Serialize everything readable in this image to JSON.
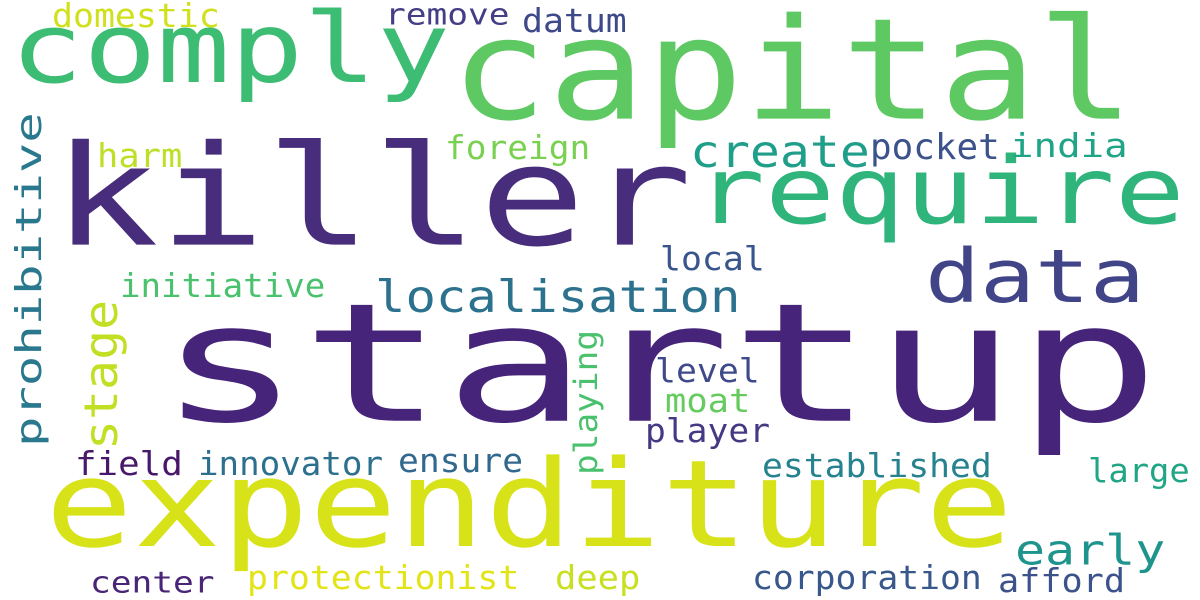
{
  "word_cloud": {
    "background": "#ffffff",
    "words": [
      {
        "text": "startup",
        "color": "#46247a"
      },
      {
        "text": "killer",
        "color": "#472d7b"
      },
      {
        "text": "capital",
        "color": "#5ec962"
      },
      {
        "text": "expenditure",
        "color": "#d8e219"
      },
      {
        "text": "comply",
        "color": "#3dbc74"
      },
      {
        "text": "require",
        "color": "#2fb47c"
      },
      {
        "text": "data",
        "color": "#414487"
      },
      {
        "text": "localisation",
        "color": "#2c728e"
      },
      {
        "text": "prohibitive",
        "color": "#2a788e"
      },
      {
        "text": "stage",
        "color": "#c2df23"
      },
      {
        "text": "create",
        "color": "#1f9e89"
      },
      {
        "text": "early",
        "color": "#1f948c"
      },
      {
        "text": "playing",
        "color": "#4ac16d"
      },
      {
        "text": "pocket",
        "color": "#3b528b"
      },
      {
        "text": "india",
        "color": "#20a486"
      },
      {
        "text": "foreign",
        "color": "#7ad151"
      },
      {
        "text": "harm",
        "color": "#bddf26"
      },
      {
        "text": "remove",
        "color": "#433e85"
      },
      {
        "text": "datum",
        "color": "#3e4989"
      },
      {
        "text": "domestic",
        "color": "#d0e11c"
      },
      {
        "text": "initiative",
        "color": "#4ac16d"
      },
      {
        "text": "local",
        "color": "#39568c"
      },
      {
        "text": "level",
        "color": "#3e4a89"
      },
      {
        "text": "moat",
        "color": "#65cb5e"
      },
      {
        "text": "player",
        "color": "#443983"
      },
      {
        "text": "field",
        "color": "#48186a"
      },
      {
        "text": "innovator",
        "color": "#2d708e"
      },
      {
        "text": "ensure",
        "color": "#31688e"
      },
      {
        "text": "established",
        "color": "#26828e"
      },
      {
        "text": "large",
        "color": "#21a685"
      },
      {
        "text": "center",
        "color": "#482576"
      },
      {
        "text": "protectionist",
        "color": "#e2e418"
      },
      {
        "text": "deep",
        "color": "#c8e020"
      },
      {
        "text": "corporation",
        "color": "#38588c"
      },
      {
        "text": "afford",
        "color": "#3b528b"
      }
    ]
  }
}
